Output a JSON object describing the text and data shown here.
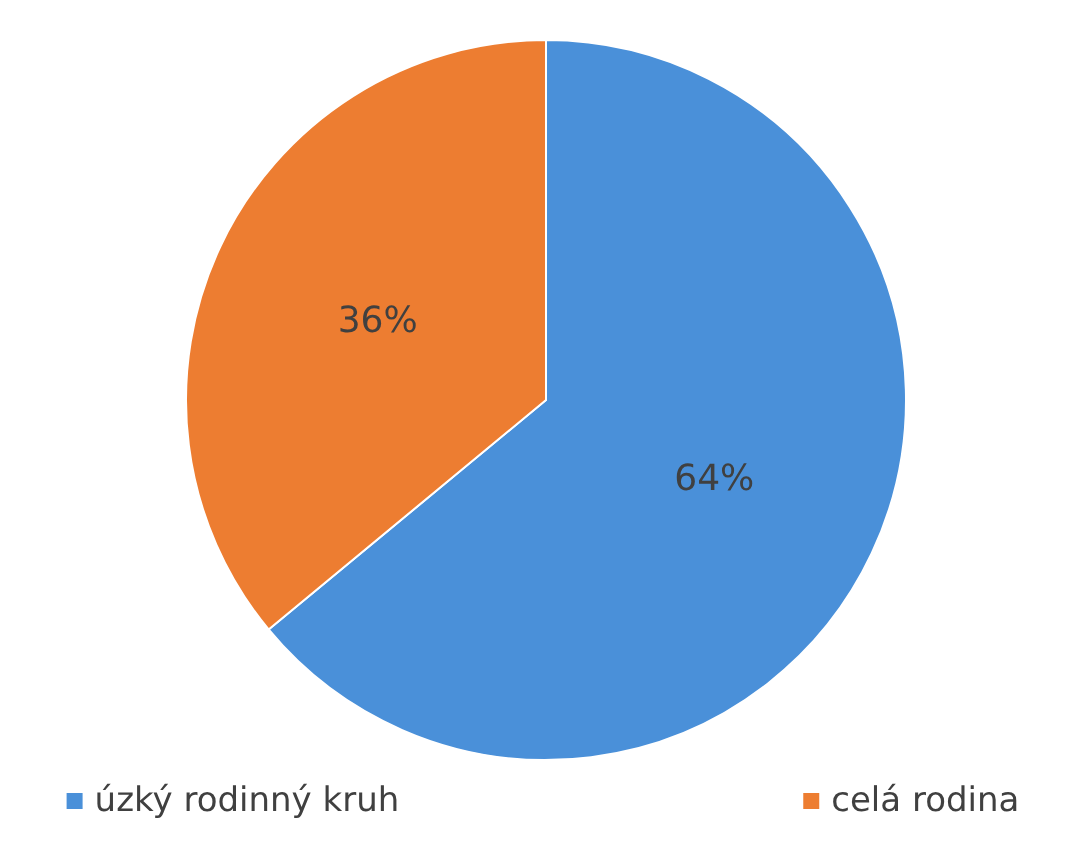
{
  "chart_data": {
    "type": "pie",
    "categories": [
      "úzký rodinný kruh",
      "celá rodina"
    ],
    "values": [
      64,
      36
    ],
    "colors": [
      "#4a90d9",
      "#ed7d31"
    ],
    "value_labels": [
      "64%",
      "36%"
    ],
    "legend": "bottom"
  }
}
